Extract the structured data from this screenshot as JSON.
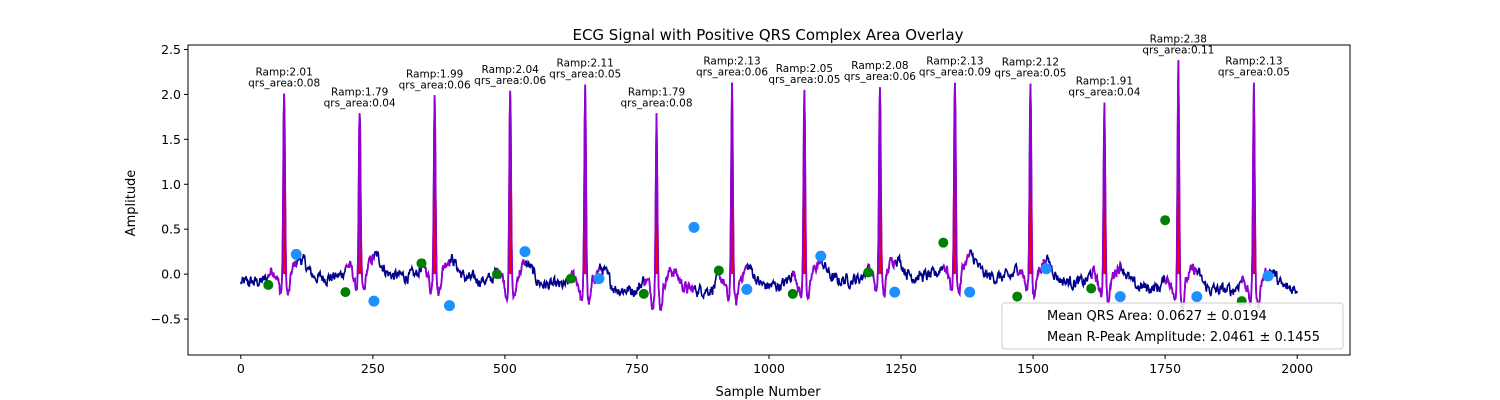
{
  "chart_data": {
    "type": "line",
    "title": "ECG Signal with Positive QRS Complex Area Overlay",
    "xlabel": "Sample Number",
    "ylabel": "Amplitude",
    "xlim": [
      -100,
      2100
    ],
    "ylim": [
      -0.9,
      2.55
    ],
    "x_ticks": [
      0,
      250,
      500,
      750,
      1000,
      1250,
      1500,
      1750,
      2000
    ],
    "y_ticks": [
      -0.5,
      0.0,
      0.5,
      1.0,
      1.5,
      2.0,
      2.5
    ],
    "y_tick_labels": [
      "−0.5",
      "0.0",
      "0.5",
      "1.0",
      "1.5",
      "2.0",
      "2.5"
    ],
    "grid": false,
    "colors": {
      "signal": "#00008b",
      "qrs_segment": "#9400d3",
      "qrs_area": "#ff0000",
      "onset_marker": "#008000",
      "offset_marker": "#1e90ff"
    },
    "beats": [
      {
        "peak_x": 82,
        "ramp": 2.01,
        "qrs_area": 0.08,
        "label": [
          "Ramp:2.01",
          "qrs_area:0.08"
        ]
      },
      {
        "peak_x": 225,
        "ramp": 1.79,
        "qrs_area": 0.04,
        "label": [
          "Ramp:1.79",
          "qrs_area:0.04"
        ]
      },
      {
        "peak_x": 367,
        "ramp": 1.99,
        "qrs_area": 0.06,
        "label": [
          "Ramp:1.99",
          "qrs_area:0.06"
        ]
      },
      {
        "peak_x": 510,
        "ramp": 2.04,
        "qrs_area": 0.06,
        "label": [
          "Ramp:2.04",
          "qrs_area:0.06"
        ]
      },
      {
        "peak_x": 652,
        "ramp": 2.11,
        "qrs_area": 0.05,
        "label": [
          "Ramp:2.11",
          "qrs_area:0.05"
        ]
      },
      {
        "peak_x": 787,
        "ramp": 1.79,
        "qrs_area": 0.08,
        "label": [
          "Ramp:1.79",
          "qrs_area:0.08"
        ]
      },
      {
        "peak_x": 930,
        "ramp": 2.13,
        "qrs_area": 0.06,
        "label": [
          "Ramp:2.13",
          "qrs_area:0.06"
        ]
      },
      {
        "peak_x": 1067,
        "ramp": 2.05,
        "qrs_area": 0.05,
        "label": [
          "Ramp:2.05",
          "qrs_area:0.05"
        ]
      },
      {
        "peak_x": 1210,
        "ramp": 2.08,
        "qrs_area": 0.06,
        "label": [
          "Ramp:2.08",
          "qrs_area:0.06"
        ]
      },
      {
        "peak_x": 1352,
        "ramp": 2.13,
        "qrs_area": 0.09,
        "label": [
          "Ramp:2.13",
          "qrs_area:0.09"
        ]
      },
      {
        "peak_x": 1495,
        "ramp": 2.12,
        "qrs_area": 0.05,
        "label": [
          "Ramp:2.12",
          "qrs_area:0.05"
        ]
      },
      {
        "peak_x": 1635,
        "ramp": 1.91,
        "qrs_area": 0.04,
        "label": [
          "Ramp:1.91",
          "qrs_area:0.04"
        ]
      },
      {
        "peak_x": 1775,
        "ramp": 2.38,
        "qrs_area": 0.11,
        "label": [
          "Ramp:2.38",
          "qrs_area:0.11"
        ]
      },
      {
        "peak_x": 1918,
        "ramp": 2.13,
        "qrs_area": 0.05,
        "label": [
          "Ramp:2.13",
          "qrs_area:0.05"
        ]
      }
    ],
    "onset_markers": [
      [
        52,
        -0.12
      ],
      [
        198,
        -0.2
      ],
      [
        342,
        0.12
      ],
      [
        485,
        0.0
      ],
      [
        625,
        -0.05
      ],
      [
        763,
        -0.22
      ],
      [
        905,
        0.04
      ],
      [
        1045,
        -0.22
      ],
      [
        1188,
        0.02
      ],
      [
        1330,
        0.35
      ],
      [
        1470,
        -0.25
      ],
      [
        1610,
        -0.16
      ],
      [
        1750,
        0.6
      ],
      [
        1895,
        -0.3
      ]
    ],
    "offset_markers": [
      [
        105,
        0.22
      ],
      [
        252,
        -0.3
      ],
      [
        395,
        -0.35
      ],
      [
        538,
        0.25
      ],
      [
        678,
        -0.05
      ],
      [
        858,
        0.52
      ],
      [
        958,
        -0.17
      ],
      [
        1098,
        0.2
      ],
      [
        1238,
        -0.2
      ],
      [
        1380,
        -0.2
      ],
      [
        1525,
        0.06
      ],
      [
        1665,
        -0.25
      ],
      [
        1810,
        -0.25
      ],
      [
        1945,
        -0.02
      ]
    ],
    "legend": {
      "placement": "lower-right",
      "entries": [
        "Mean QRS Area: 0.0627 ± 0.0194",
        "Mean R-Peak Amplitude: 2.0461 ± 0.1455"
      ]
    }
  }
}
